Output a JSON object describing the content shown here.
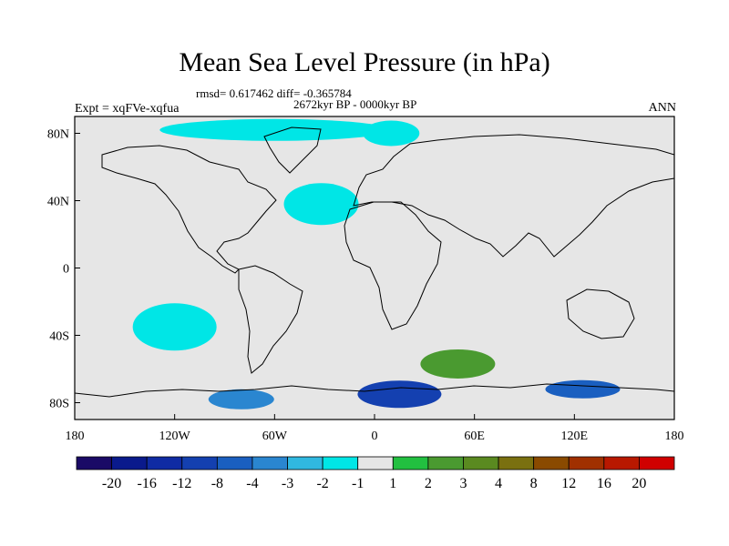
{
  "chart_data": {
    "type": "heatmap",
    "title": "Mean Sea Level Pressure (in hPa)",
    "stats_line": "rmsd= 0.617462 diff= -0.365784",
    "period_line": "2672kyr BP - 0000kyr BP",
    "left_label": "Expt = xqFVe-xqfua",
    "right_label": "ANN",
    "x_ticks": [
      "180",
      "120W",
      "60W",
      "0",
      "60E",
      "120E",
      "180"
    ],
    "y_ticks": [
      "80N",
      "40N",
      "0",
      "40S",
      "80S"
    ],
    "x_range": [
      -180,
      180
    ],
    "y_range": [
      -90,
      90
    ],
    "colorbar": {
      "labels": [
        "-20",
        "-16",
        "-12",
        "-8",
        "-4",
        "-3",
        "-2",
        "-1",
        "1",
        "2",
        "3",
        "4",
        "8",
        "12",
        "16",
        "20"
      ],
      "colors": [
        "#1a0a66",
        "#0a1a8c",
        "#0f2ba3",
        "#1440b0",
        "#1a5fc0",
        "#2a86d0",
        "#30b8e0",
        "#00e6e6",
        "#e6e6e6",
        "#22c040",
        "#4a9a30",
        "#5a8a20",
        "#7a7010",
        "#8a4a00",
        "#a03000",
        "#b81800",
        "#d00000"
      ]
    },
    "anomaly_regions": [
      {
        "name": "north-atlantic-low",
        "lon": -32,
        "lat": 38,
        "bin": "-1"
      },
      {
        "name": "south-pacific-low",
        "lon": -120,
        "lat": -35,
        "bin": "-1"
      },
      {
        "name": "south-indian-high",
        "lon": 50,
        "lat": -57,
        "bin": "2"
      },
      {
        "name": "arctic-low",
        "lon": -60,
        "lat": 82,
        "bin": "-1"
      },
      {
        "name": "greenland-sea-low",
        "lon": 10,
        "lat": 80,
        "bin": "-1"
      },
      {
        "name": "antarctic-low-atlantic",
        "lon": 15,
        "lat": -75,
        "bin": "-8"
      },
      {
        "name": "antarctic-low-pacific",
        "lon": -80,
        "lat": -78,
        "bin": "-3"
      },
      {
        "name": "antarctic-low-east",
        "lon": 125,
        "lat": -72,
        "bin": "-4"
      }
    ]
  }
}
